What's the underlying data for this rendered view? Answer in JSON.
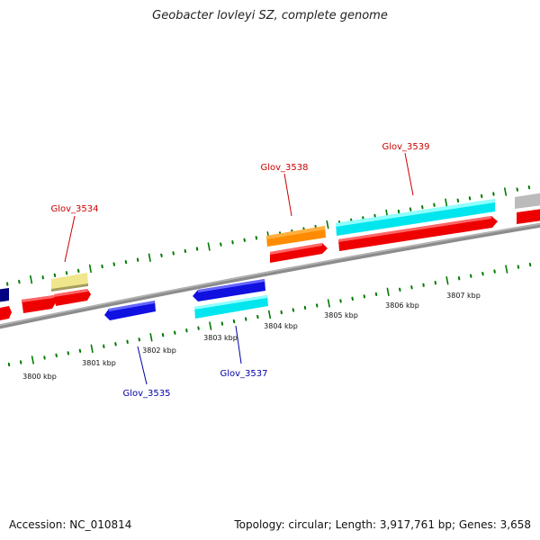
{
  "title": "Geobacter lovleyi SZ, complete genome",
  "footer": {
    "accession": "Accession: NC_010814",
    "summary": "Topology: circular; Length: 3,917,761 bp; Genes: 3,658"
  },
  "map": {
    "ticks": [
      {
        "label": "3800 kbp"
      },
      {
        "label": "3801 kbp"
      },
      {
        "label": "3802 kbp"
      },
      {
        "label": "3803 kbp"
      },
      {
        "label": "3804 kbp"
      },
      {
        "label": "3805 kbp"
      },
      {
        "label": "3806 kbp"
      },
      {
        "label": "3807 kbp"
      }
    ],
    "gene_labels": [
      {
        "name": "Glov_3534",
        "color": "#cc0000"
      },
      {
        "name": "Glov_3538",
        "color": "#cc0000"
      },
      {
        "name": "Glov_3539",
        "color": "#cc0000"
      },
      {
        "name": "Glov_3535",
        "color": "#0000aa"
      },
      {
        "name": "Glov_3537",
        "color": "#0000aa"
      }
    ],
    "colors": {
      "red": "#ff0000",
      "blue": "#1010e0",
      "navy": "#000080",
      "cyan": "#00e5ee",
      "orange": "#ff8c00",
      "khaki": "#f0e68c",
      "grey": "#bbbbbb",
      "tick": "#007a00",
      "backbone": "#8c8c8c"
    }
  }
}
